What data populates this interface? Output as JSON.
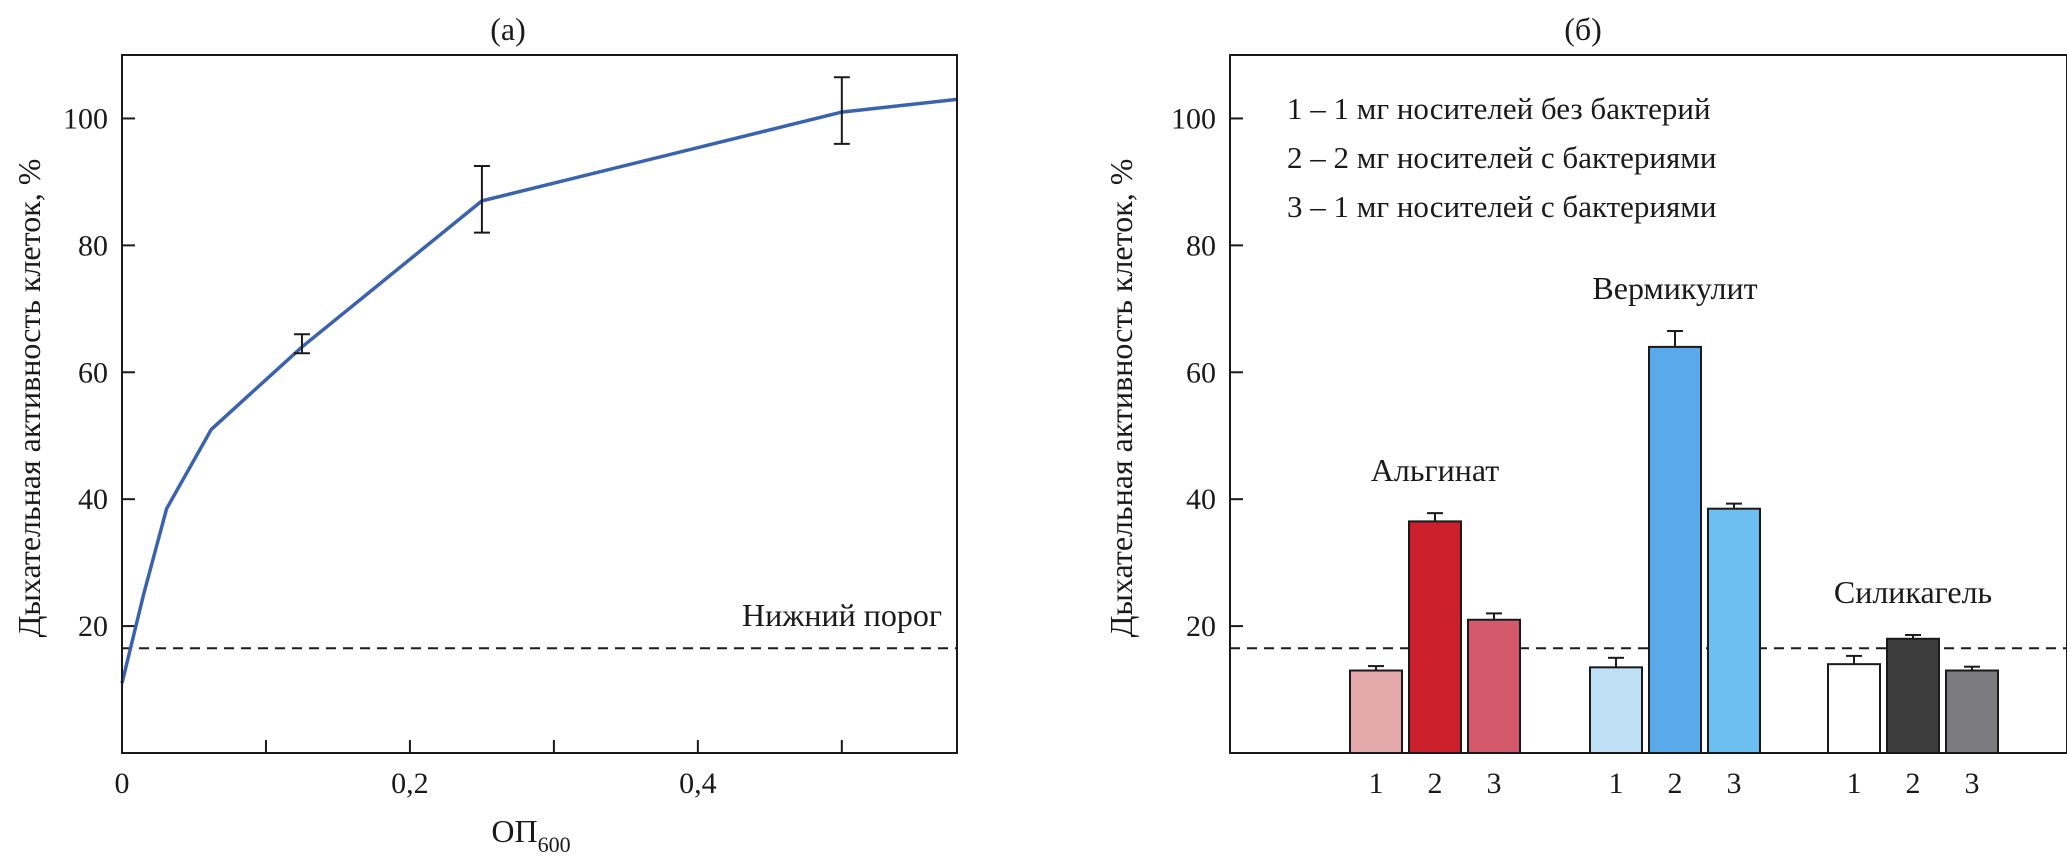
{
  "chart_data": [
    {
      "id": "a",
      "type": "line",
      "panel_title": "(a)",
      "xlabel_main": "ОП",
      "xlabel_sub": "600",
      "ylabel": "Дыхательная активность клеток, %",
      "xlim": [
        0,
        0.58
      ],
      "ylim": [
        0,
        110
      ],
      "x_ticks": [
        0,
        0.1,
        0.2,
        0.3,
        0.4,
        0.5
      ],
      "x_tick_labels": [
        "0",
        "",
        "0,2",
        "",
        "0,4",
        ""
      ],
      "y_ticks": [
        20,
        40,
        60,
        80,
        100
      ],
      "y_tick_labels": [
        "20",
        "40",
        "60",
        "80",
        "100"
      ],
      "series": [
        {
          "name": "Дыхательная активность",
          "color": "#3b63ad",
          "x": [
            0,
            0.015,
            0.031,
            0.062,
            0.125,
            0.25,
            0.5,
            0.58
          ],
          "y": [
            11,
            25,
            38.5,
            51,
            64,
            87,
            101,
            103
          ]
        }
      ],
      "error_bars": [
        {
          "x": 0.125,
          "low": 63,
          "high": 66
        },
        {
          "x": 0.25,
          "low": 82,
          "high": 92.5
        },
        {
          "x": 0.5,
          "low": 96,
          "high": 106.5
        }
      ],
      "threshold": {
        "value": 16.5,
        "label": "Нижний порог"
      }
    },
    {
      "id": "b",
      "type": "bar",
      "panel_title": "(б)",
      "ylabel": "Дыхательная активность клеток, %",
      "ylim": [
        0,
        110
      ],
      "y_ticks": [
        20,
        40,
        60,
        80,
        100
      ],
      "y_tick_labels": [
        "20",
        "40",
        "60",
        "80",
        "100"
      ],
      "legend": [
        "1 – 1 мг носителей без бактерий",
        "2 – 2 мг носителей с бактериями",
        "3 – 1 мг носителей с бактериями"
      ],
      "threshold": {
        "value": 16.5
      },
      "groups": [
        {
          "name": "Альгинат",
          "bars": [
            {
              "label": "1",
              "value": 13,
              "error": 0.7,
              "color": "#e3a8aa"
            },
            {
              "label": "2",
              "value": 36.5,
              "error": 1.3,
              "color": "#cc1f2c"
            },
            {
              "label": "3",
              "value": 21,
              "error": 1.0,
              "color": "#d4596b"
            }
          ]
        },
        {
          "name": "Вермикулит",
          "bars": [
            {
              "label": "1",
              "value": 13.5,
              "error": 1.5,
              "color": "#bfe0f7"
            },
            {
              "label": "2",
              "value": 64,
              "error": 2.5,
              "color": "#5aaaeb"
            },
            {
              "label": "3",
              "value": 38.5,
              "error": 0.8,
              "color": "#6dbff2"
            }
          ]
        },
        {
          "name": "Силикагель",
          "bars": [
            {
              "label": "1",
              "value": 14,
              "error": 1.3,
              "color": "#ffffff"
            },
            {
              "label": "2",
              "value": 18,
              "error": 0.6,
              "color": "#3d3d3d"
            },
            {
              "label": "3",
              "value": 13,
              "error": 0.6,
              "color": "#7b7b80"
            }
          ]
        }
      ]
    }
  ]
}
